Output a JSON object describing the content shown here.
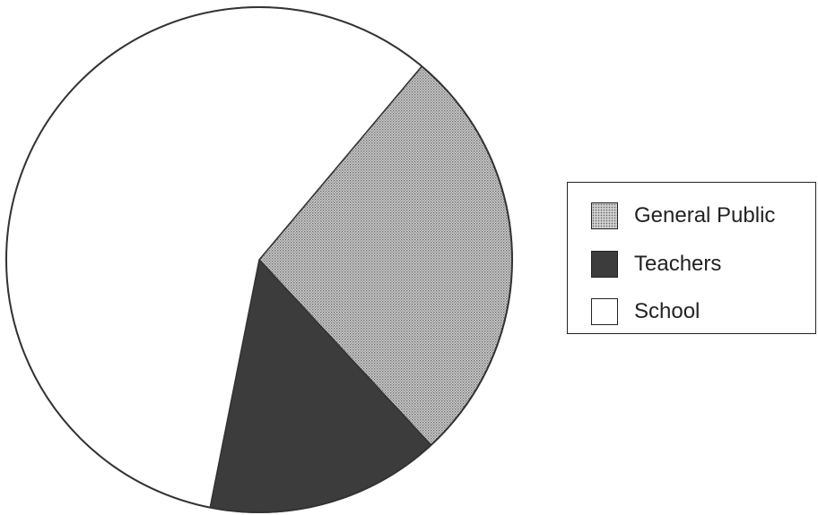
{
  "chart_data": {
    "type": "pie",
    "title": "",
    "slices": [
      {
        "label": "General Public",
        "value": 27,
        "color": "#b4b4b4",
        "pattern": "dotted"
      },
      {
        "label": "Teachers",
        "value": 15,
        "color": "#3c3c3c",
        "pattern": "solid"
      },
      {
        "label": "School",
        "value": 58,
        "color": "#ffffff",
        "pattern": "solid"
      }
    ],
    "start_angle_deg": 40,
    "direction": "clockwise",
    "legend": {
      "position": "right",
      "items": [
        "General Public",
        "Teachers",
        "School"
      ]
    }
  }
}
